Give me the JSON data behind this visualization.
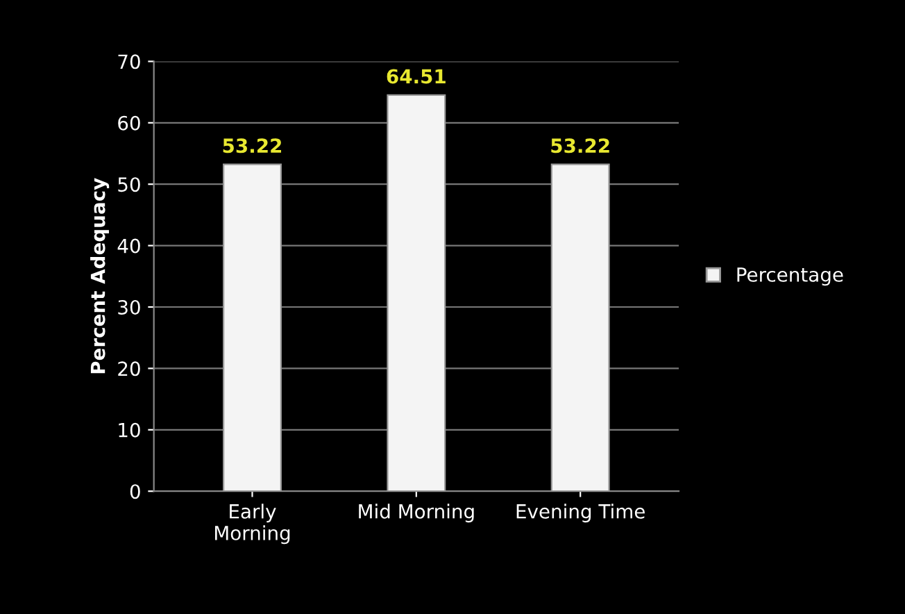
{
  "chart_data": {
    "type": "bar",
    "ylabel": "Percent Adequacy",
    "categories": [
      "Early\nMorning",
      "Mid Morning",
      "Evening Time"
    ],
    "series": [
      {
        "name": "Percentage",
        "color": "#f4f4f4",
        "values": [
          53.22,
          64.51,
          53.22
        ]
      }
    ],
    "ylim": [
      0,
      70
    ],
    "yticks": [
      0,
      10,
      20,
      30,
      40,
      50,
      60,
      70
    ],
    "grid": "y",
    "legend": "right",
    "data_labels": true
  }
}
